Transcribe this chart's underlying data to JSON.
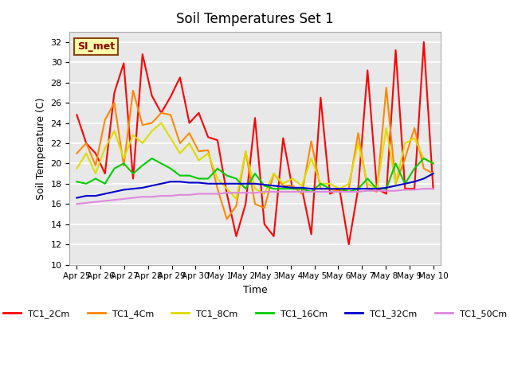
{
  "title": "Soil Temperatures Set 1",
  "xlabel": "Time",
  "ylabel": "Soil Temperature (C)",
  "ylim": [
    10,
    33
  ],
  "annotation_text": "SI_met",
  "annotation_bg": "#ffffaa",
  "annotation_border": "#8B4513",
  "annotation_text_color": "#8B0000",
  "tick_labels": [
    "Apr 25",
    "Apr 26",
    "Apr 27",
    "Apr 28",
    "Apr 29",
    "Apr 30",
    "May 1",
    "May 2",
    "May 3",
    "May 4",
    "May 5",
    "May 6",
    "May 7",
    "May 8",
    "May 9",
    "May 10"
  ],
  "series": {
    "TC1_2Cm": {
      "color": "#ff0000",
      "data": [
        24.8,
        22.0,
        21.0,
        19.0,
        27.0,
        29.9,
        18.5,
        30.8,
        26.7,
        25.0,
        26.6,
        28.5,
        24.0,
        25.0,
        22.6,
        22.3,
        17.0,
        12.8,
        16.0,
        24.5,
        14.0,
        12.8,
        22.5,
        17.5,
        17.5,
        13.0,
        26.5,
        17.0,
        17.5,
        12.0,
        17.5,
        29.2,
        17.5,
        17.0,
        31.2,
        17.5,
        17.5,
        32.0,
        17.5
      ]
    },
    "TC1_4Cm": {
      "color": "#ff8800",
      "data": [
        21.0,
        22.0,
        19.8,
        24.3,
        26.0,
        19.8,
        27.2,
        23.8,
        24.0,
        25.0,
        24.8,
        22.0,
        23.0,
        21.2,
        21.3,
        17.5,
        14.5,
        15.8,
        21.2,
        16.0,
        15.6,
        19.0,
        17.8,
        17.8,
        17.0,
        22.2,
        17.5,
        17.5,
        17.2,
        17.5,
        23.0,
        17.5,
        17.2,
        27.5,
        18.0,
        20.5,
        23.5,
        19.5,
        19.0
      ]
    },
    "TC1_8Cm": {
      "color": "#dddd00",
      "data": [
        19.5,
        21.0,
        19.0,
        21.5,
        23.2,
        20.5,
        22.8,
        22.0,
        23.2,
        24.0,
        22.5,
        21.0,
        22.0,
        20.3,
        21.0,
        18.5,
        17.5,
        16.5,
        21.2,
        17.5,
        17.0,
        19.0,
        18.0,
        18.5,
        17.8,
        20.5,
        18.0,
        18.0,
        17.5,
        18.0,
        22.0,
        18.0,
        17.5,
        23.5,
        18.0,
        22.0,
        22.5,
        20.5,
        20.0
      ]
    },
    "TC1_16Cm": {
      "color": "#00cc00",
      "data": [
        18.2,
        18.0,
        18.5,
        18.0,
        19.5,
        20.0,
        19.0,
        19.8,
        20.5,
        20.0,
        19.5,
        18.8,
        18.8,
        18.5,
        18.5,
        19.5,
        18.8,
        18.5,
        17.5,
        19.0,
        17.8,
        17.5,
        17.5,
        17.5,
        17.5,
        17.2,
        18.0,
        17.5,
        17.5,
        17.2,
        17.5,
        18.5,
        17.5,
        17.5,
        20.0,
        18.0,
        19.5,
        20.5,
        20.0
      ]
    },
    "TC1_32Cm": {
      "color": "#0000cc",
      "data": [
        16.6,
        16.8,
        16.8,
        17.0,
        17.2,
        17.4,
        17.5,
        17.6,
        17.8,
        18.0,
        18.2,
        18.2,
        18.1,
        18.1,
        18.0,
        18.0,
        18.0,
        18.0,
        18.0,
        18.0,
        17.9,
        17.8,
        17.7,
        17.6,
        17.6,
        17.5,
        17.5,
        17.5,
        17.5,
        17.5,
        17.5,
        17.5,
        17.5,
        17.6,
        17.8,
        18.0,
        18.2,
        18.5,
        19.0
      ]
    },
    "TC1_50Cm": {
      "color": "#dd88dd",
      "data": [
        16.0,
        16.1,
        16.2,
        16.3,
        16.4,
        16.5,
        16.6,
        16.7,
        16.7,
        16.8,
        16.8,
        16.9,
        16.9,
        17.0,
        17.0,
        17.0,
        17.1,
        17.1,
        17.1,
        17.1,
        17.2,
        17.2,
        17.2,
        17.2,
        17.2,
        17.2,
        17.2,
        17.2,
        17.2,
        17.2,
        17.2,
        17.3,
        17.3,
        17.3,
        17.3,
        17.4,
        17.4,
        17.5,
        17.5
      ]
    }
  },
  "n_points": 39,
  "legend_order": [
    "TC1_2Cm",
    "TC1_4Cm",
    "TC1_8Cm",
    "TC1_16Cm",
    "TC1_32Cm",
    "TC1_50Cm"
  ]
}
